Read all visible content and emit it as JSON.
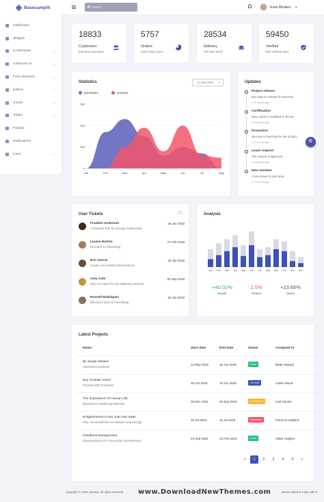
{
  "brand": {
    "name": "Basecamplit"
  },
  "sidebar": {
    "items": [
      {
        "label": "Dashboard",
        "icon": "dashboard-icon",
        "chevron": false
      },
      {
        "label": "Widgets",
        "icon": "widgets-icon",
        "chevron": false
      },
      {
        "label": "UI Elements",
        "icon": "ui-elements-icon",
        "chevron": true
      },
      {
        "label": "Advanced UI",
        "icon": "advanced-ui-icon",
        "chevron": true
      },
      {
        "label": "Form elements",
        "icon": "form-icon",
        "chevron": true
      },
      {
        "label": "Editors",
        "icon": "editors-icon",
        "chevron": true
      },
      {
        "label": "Charts",
        "icon": "charts-icon",
        "chevron": true
      },
      {
        "label": "Tables",
        "icon": "tables-icon",
        "chevron": true
      },
      {
        "label": "Popups",
        "icon": "popups-icon",
        "chevron": false
      },
      {
        "label": "Notifications",
        "icon": "notifications-icon",
        "chevron": false
      },
      {
        "label": "Icons",
        "icon": "icons-icon",
        "chevron": true
      }
    ]
  },
  "topbar": {
    "search_placeholder": "search",
    "user_name": "Evan Morales"
  },
  "stats": [
    {
      "value": "18833",
      "label": "Customers",
      "sub": "800 New customers",
      "icon": "users-icon"
    },
    {
      "value": "5757",
      "label": "Orders",
      "sub": "3420 Daily orders",
      "icon": "pie-icon"
    },
    {
      "value": "28534",
      "label": "Delivery",
      "sub": "760 New items",
      "icon": "car-icon"
    },
    {
      "value": "59450",
      "label": "Verified",
      "sub": "545 Verified users",
      "icon": "shield-check-icon"
    }
  ],
  "statistics": {
    "title": "Statistics",
    "date": "11 May 2018",
    "colors": {
      "purchases": "#6b6fc2",
      "services": "#f2566b"
    }
  },
  "chart_data": [
    {
      "type": "area",
      "categories": [
        "Jan",
        "Feb",
        "Mar",
        "Apr",
        "May",
        "Jun",
        "Jul",
        "Aug"
      ],
      "series": [
        {
          "name": "purchases",
          "values": [
            0,
            170,
            230,
            150,
            60,
            100,
            70,
            0
          ]
        },
        {
          "name": "services",
          "values": [
            0,
            0,
            100,
            190,
            80,
            200,
            60,
            50
          ]
        }
      ],
      "yticks": [
        0,
        100,
        200,
        300
      ],
      "ylim": [
        0,
        300
      ],
      "legend": "top-left"
    },
    {
      "type": "bar",
      "categories": [
        "Jan",
        "Feb",
        "Mar",
        "Apr",
        "May",
        "Jun",
        "Jul",
        "Aug",
        "Sep",
        "Oct",
        "Nov",
        "Dec"
      ],
      "series": [
        {
          "name": "a",
          "values": [
            45,
            60,
            70,
            80,
            55,
            90,
            45,
            50,
            70,
            65,
            40,
            25
          ]
        },
        {
          "name": "b",
          "values": [
            20,
            30,
            40,
            50,
            28,
            55,
            25,
            30,
            45,
            40,
            15,
            10
          ]
        }
      ]
    }
  ],
  "updates": {
    "title": "Updates",
    "items": [
      {
        "title": "Project release",
        "text": "Due date for release is tomorrow",
        "time": "2 hours ago"
      },
      {
        "title": "Certification",
        "text": "New course is available in the list",
        "time": "2 hours ago"
      },
      {
        "title": "Promotion",
        "text": "New site is launched for the product",
        "time": "2 hours ago"
      },
      {
        "title": "Leave request",
        "text": "The request is approved",
        "time": "2 hours ago"
      },
      {
        "title": "New member",
        "text": "A new joinee to your team",
        "time": "2 hours ago"
      }
    ]
  },
  "tickets": {
    "title": "User Tickets",
    "more": "...",
    "items": [
      {
        "name": "Franklin Anderson",
        "sub": "A Powerful Tips To Creating Testimonials",
        "date": "19 Jan 2018",
        "color": "#3d2b1f"
      },
      {
        "name": "Louise Horton",
        "sub": "Research In Advertising",
        "date": "27 Feb 2018",
        "color": "#a67c52"
      },
      {
        "name": "Eric Garcia",
        "sub": "Create a successful advertisement",
        "date": "19 Jan 2018",
        "color": "#6b4b3a"
      },
      {
        "name": "Amy Cole",
        "sub": "Why You Need To Join Marketing Network",
        "date": "25 Sep 2018",
        "color": "#c8913a"
      },
      {
        "name": "Russell Rodriquez",
        "sub": "Effective Forms Of Advertising",
        "date": "19 Jan 2018",
        "color": "#8a7060"
      }
    ]
  },
  "analysis": {
    "title": "Analysis",
    "stats": [
      {
        "value": "+40.02%",
        "label": "Growth",
        "color": "#26a69a"
      },
      {
        "value": "2.5%",
        "label": "Refund",
        "color": "#ef5350"
      },
      {
        "value": "+23.65%",
        "label": "Online",
        "color": "#555555"
      }
    ]
  },
  "projects": {
    "title": "Latest Projects",
    "headers": [
      "Name",
      "Start date",
      "End date",
      "Status",
      "Assigned to"
    ],
    "rows": [
      {
        "name": "Be Single Minded",
        "sub": "Advertising Outdoors",
        "start": "13 May 2018",
        "end": "19 Jun 2018",
        "status": "Done",
        "status_color": "#26c281",
        "assigned": "Betty Howard"
      },
      {
        "name": "Buy Youtube Views",
        "sub": "Promote With Postcards",
        "start": "30 Oct 2018",
        "end": "19 Jun 2018",
        "status": "On hold",
        "status_color": "#3f51b5",
        "assigned": "Calvin Wood"
      },
      {
        "name": "The Importance Of Human Life",
        "sub": "Illustration In Marketing Materials",
        "start": "06 Dec 2018",
        "end": "25 Sep 2018",
        "status": "In progress",
        "status_color": "#f5b731",
        "assigned": "Carl Dennis"
      },
      {
        "name": "Enlightenment Is Not Just One State",
        "sub": "Why You Should Not Go Wasted Long Enough",
        "start": "15 Jul 2018",
        "end": "15 Jul 2018",
        "status": "Cancelled",
        "status_color": "#f2566b",
        "assigned": "Florence Holland"
      },
      {
        "name": "Feedback Management",
        "sub": "Characteristics Of A Successful Advertisement",
        "start": "04 Sep 2018",
        "end": "02 Feb 2018",
        "status": "Done",
        "status_color": "#26c281",
        "assigned": "Abbie Hughes"
      }
    ],
    "pagination": [
      "«",
      "1",
      "2",
      "3",
      "4",
      "5",
      "»"
    ],
    "active_page": "1"
  },
  "footer": {
    "copyright": "Copyright © 2018 Urbanui. All rights reserved.",
    "watermark": "www.DownloadNewThemes.com",
    "right": "Hand-crafted & made with ♥"
  }
}
